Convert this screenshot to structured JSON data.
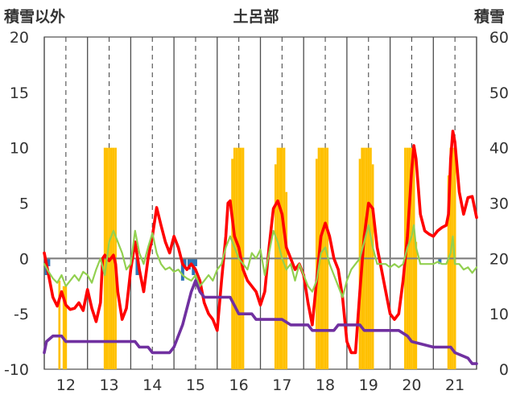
{
  "chart_data": {
    "type": "line",
    "title": "土呂部",
    "ylabel_left": "積雪以外",
    "ylabel_right": "積雪",
    "y_left_range": [
      -10,
      20
    ],
    "y_left_ticks": [
      "20",
      "15",
      "10",
      "5",
      "0",
      "-5",
      "-10"
    ],
    "y_right_range": [
      0,
      60
    ],
    "y_right_ticks": [
      "60",
      "50",
      "40",
      "30",
      "20",
      "10",
      "0"
    ],
    "x_range": [
      11.5,
      21.5
    ],
    "x_ticks": [
      "12",
      "13",
      "14",
      "15",
      "16",
      "17",
      "18",
      "19",
      "20",
      "21"
    ],
    "vertical_gridlines": "solid at day boundaries, dashed at midday",
    "legend": "none",
    "colors": {
      "temperature": "#ff0000",
      "dewpoint": "#92d050",
      "snow_depth": "#7030a0",
      "snowfall": "#ffc000",
      "precipitation": "#2e75b6",
      "zero_line": "#7f7f7f",
      "grid": "#4d4d4d"
    },
    "series": [
      {
        "axis": "left",
        "style": "line",
        "color": "#ff0000",
        "points": [
          [
            11.5,
            0.5
          ],
          [
            11.6,
            -1.5
          ],
          [
            11.7,
            -3.5
          ],
          [
            11.8,
            -4.3
          ],
          [
            11.9,
            -3.0
          ],
          [
            12.0,
            -4.2
          ],
          [
            12.1,
            -4.6
          ],
          [
            12.2,
            -4.5
          ],
          [
            12.3,
            -4.0
          ],
          [
            12.4,
            -4.7
          ],
          [
            12.5,
            -2.8
          ],
          [
            12.6,
            -4.5
          ],
          [
            12.7,
            -5.7
          ],
          [
            12.8,
            -4.0
          ],
          [
            12.85,
            0.0
          ],
          [
            12.9,
            0.3
          ],
          [
            13.0,
            -0.2
          ],
          [
            13.1,
            0.3
          ],
          [
            13.15,
            -0.5
          ],
          [
            13.2,
            -3.0
          ],
          [
            13.3,
            -5.5
          ],
          [
            13.4,
            -4.5
          ],
          [
            13.5,
            -1.0
          ],
          [
            13.6,
            1.5
          ],
          [
            13.7,
            -1.0
          ],
          [
            13.8,
            -3.0
          ],
          [
            13.9,
            0.0
          ],
          [
            14.0,
            2.0
          ],
          [
            14.1,
            4.6
          ],
          [
            14.2,
            3.0
          ],
          [
            14.3,
            1.5
          ],
          [
            14.4,
            0.5
          ],
          [
            14.5,
            2.0
          ],
          [
            14.6,
            1.0
          ],
          [
            14.7,
            -0.5
          ],
          [
            14.8,
            -1.0
          ],
          [
            14.9,
            -0.5
          ],
          [
            15.0,
            -1.0
          ],
          [
            15.1,
            -2.0
          ],
          [
            15.2,
            -4.0
          ],
          [
            15.3,
            -5.0
          ],
          [
            15.4,
            -5.5
          ],
          [
            15.5,
            -6.5
          ],
          [
            15.6,
            -2.0
          ],
          [
            15.7,
            2.0
          ],
          [
            15.75,
            5.0
          ],
          [
            15.8,
            5.2
          ],
          [
            15.9,
            2.0
          ],
          [
            16.0,
            1.0
          ],
          [
            16.1,
            -1.0
          ],
          [
            16.2,
            -2.0
          ],
          [
            16.3,
            -2.5
          ],
          [
            16.4,
            -3.0
          ],
          [
            16.5,
            -4.2
          ],
          [
            16.6,
            -3.0
          ],
          [
            16.7,
            1.0
          ],
          [
            16.8,
            4.5
          ],
          [
            16.9,
            5.2
          ],
          [
            17.0,
            4.0
          ],
          [
            17.1,
            1.0
          ],
          [
            17.2,
            0.0
          ],
          [
            17.3,
            -1.0
          ],
          [
            17.4,
            -0.5
          ],
          [
            17.5,
            -1.5
          ],
          [
            17.6,
            -4.0
          ],
          [
            17.7,
            -6.0
          ],
          [
            17.8,
            -2.0
          ],
          [
            17.9,
            2.0
          ],
          [
            18.0,
            3.2
          ],
          [
            18.1,
            2.0
          ],
          [
            18.2,
            0.0
          ],
          [
            18.3,
            -1.0
          ],
          [
            18.4,
            -3.5
          ],
          [
            18.5,
            -7.5
          ],
          [
            18.6,
            -8.5
          ],
          [
            18.7,
            -8.5
          ],
          [
            18.8,
            -3.0
          ],
          [
            18.9,
            2.0
          ],
          [
            19.0,
            5.0
          ],
          [
            19.1,
            4.5
          ],
          [
            19.2,
            1.0
          ],
          [
            19.3,
            -1.0
          ],
          [
            19.4,
            -3.0
          ],
          [
            19.5,
            -5.0
          ],
          [
            19.6,
            -5.5
          ],
          [
            19.7,
            -5.0
          ],
          [
            19.8,
            -2.0
          ],
          [
            19.9,
            2.0
          ],
          [
            20.0,
            8.0
          ],
          [
            20.05,
            10.2
          ],
          [
            20.1,
            9.0
          ],
          [
            20.2,
            4.0
          ],
          [
            20.3,
            2.5
          ],
          [
            20.4,
            2.2
          ],
          [
            20.5,
            2.0
          ],
          [
            20.6,
            2.5
          ],
          [
            20.7,
            2.8
          ],
          [
            20.8,
            3.0
          ],
          [
            20.85,
            4.0
          ],
          [
            20.9,
            9.0
          ],
          [
            20.95,
            11.5
          ],
          [
            21.0,
            10.5
          ],
          [
            21.1,
            6.0
          ],
          [
            21.2,
            4.0
          ],
          [
            21.3,
            5.5
          ],
          [
            21.4,
            5.6
          ],
          [
            21.5,
            3.7
          ]
        ]
      },
      {
        "axis": "left",
        "style": "line",
        "color": "#92d050",
        "points": [
          [
            11.5,
            -0.5
          ],
          [
            11.6,
            -1.2
          ],
          [
            11.7,
            -1.8
          ],
          [
            11.8,
            -2.2
          ],
          [
            11.9,
            -1.5
          ],
          [
            12.0,
            -2.5
          ],
          [
            12.1,
            -2.0
          ],
          [
            12.2,
            -1.5
          ],
          [
            12.3,
            -2.0
          ],
          [
            12.4,
            -1.2
          ],
          [
            12.5,
            -1.5
          ],
          [
            12.6,
            -2.2
          ],
          [
            12.7,
            -1.0
          ],
          [
            12.8,
            0.0
          ],
          [
            12.9,
            -1.5
          ],
          [
            13.0,
            1.5
          ],
          [
            13.1,
            2.5
          ],
          [
            13.2,
            1.5
          ],
          [
            13.3,
            0.5
          ],
          [
            13.4,
            -1.0
          ],
          [
            13.5,
            -0.5
          ],
          [
            13.6,
            2.5
          ],
          [
            13.7,
            0.5
          ],
          [
            13.8,
            -0.5
          ],
          [
            13.9,
            1.0
          ],
          [
            14.0,
            2.3
          ],
          [
            14.1,
            0.5
          ],
          [
            14.2,
            -0.5
          ],
          [
            14.3,
            -1.0
          ],
          [
            14.4,
            -0.8
          ],
          [
            14.5,
            -1.2
          ],
          [
            14.6,
            -1.0
          ],
          [
            14.7,
            -1.5
          ],
          [
            14.8,
            -1.8
          ],
          [
            14.9,
            -2.0
          ],
          [
            15.0,
            -1.5
          ],
          [
            15.1,
            -2.5
          ],
          [
            15.2,
            -2.0
          ],
          [
            15.3,
            -1.5
          ],
          [
            15.4,
            -2.0
          ],
          [
            15.5,
            -1.0
          ],
          [
            15.6,
            -0.5
          ],
          [
            15.7,
            1.0
          ],
          [
            15.8,
            2.0
          ],
          [
            15.9,
            1.0
          ],
          [
            16.0,
            0.0
          ],
          [
            16.1,
            -0.5
          ],
          [
            16.2,
            -1.0
          ],
          [
            16.3,
            0.5
          ],
          [
            16.4,
            0.0
          ],
          [
            16.5,
            0.8
          ],
          [
            16.6,
            -1.5
          ],
          [
            16.7,
            0.5
          ],
          [
            16.8,
            2.5
          ],
          [
            16.9,
            1.5
          ],
          [
            17.0,
            0.0
          ],
          [
            17.1,
            -1.0
          ],
          [
            17.2,
            -0.5
          ],
          [
            17.3,
            -2.0
          ],
          [
            17.4,
            -0.5
          ],
          [
            17.5,
            -1.5
          ],
          [
            17.6,
            -2.5
          ],
          [
            17.7,
            -3.0
          ],
          [
            17.8,
            -2.0
          ],
          [
            17.9,
            0.5
          ],
          [
            18.0,
            1.0
          ],
          [
            18.1,
            -0.5
          ],
          [
            18.2,
            -1.5
          ],
          [
            18.3,
            -2.5
          ],
          [
            18.4,
            -3.5
          ],
          [
            18.5,
            -2.0
          ],
          [
            18.6,
            -1.0
          ],
          [
            18.7,
            -0.5
          ],
          [
            18.8,
            0.0
          ],
          [
            18.9,
            1.5
          ],
          [
            19.0,
            3.0
          ],
          [
            19.1,
            1.0
          ],
          [
            19.2,
            -0.5
          ],
          [
            19.3,
            -0.5
          ],
          [
            19.4,
            -0.5
          ],
          [
            19.5,
            -0.8
          ],
          [
            19.6,
            -0.5
          ],
          [
            19.7,
            -0.8
          ],
          [
            19.8,
            -0.5
          ],
          [
            19.9,
            1.0
          ],
          [
            20.0,
            2.0
          ],
          [
            20.05,
            3.0
          ],
          [
            20.1,
            1.0
          ],
          [
            20.2,
            -0.5
          ],
          [
            20.3,
            -0.5
          ],
          [
            20.4,
            -0.5
          ],
          [
            20.5,
            -0.5
          ],
          [
            20.6,
            -0.3
          ],
          [
            20.7,
            -0.5
          ],
          [
            20.8,
            -0.5
          ],
          [
            20.9,
            0.5
          ],
          [
            20.95,
            2.0
          ],
          [
            21.0,
            -0.5
          ],
          [
            21.1,
            -0.5
          ],
          [
            21.2,
            -1.0
          ],
          [
            21.3,
            -0.8
          ],
          [
            21.4,
            -1.3
          ],
          [
            21.5,
            -0.8
          ]
        ]
      },
      {
        "axis": "right",
        "style": "step",
        "color": "#7030a0",
        "points": [
          [
            11.5,
            3
          ],
          [
            11.55,
            5
          ],
          [
            11.7,
            6
          ],
          [
            11.9,
            6
          ],
          [
            12.0,
            5
          ],
          [
            12.5,
            5
          ],
          [
            13.6,
            5
          ],
          [
            13.7,
            4
          ],
          [
            13.9,
            4
          ],
          [
            14.0,
            3
          ],
          [
            14.4,
            3
          ],
          [
            14.5,
            4
          ],
          [
            14.7,
            8
          ],
          [
            14.9,
            14
          ],
          [
            15.0,
            16
          ],
          [
            15.1,
            14
          ],
          [
            15.2,
            13
          ],
          [
            15.8,
            13
          ],
          [
            16.0,
            10
          ],
          [
            16.3,
            10
          ],
          [
            16.4,
            9
          ],
          [
            17.0,
            9
          ],
          [
            17.2,
            8
          ],
          [
            17.6,
            8
          ],
          [
            17.7,
            7
          ],
          [
            18.2,
            7
          ],
          [
            18.3,
            8
          ],
          [
            18.8,
            8
          ],
          [
            18.9,
            7
          ],
          [
            19.7,
            7
          ],
          [
            19.9,
            6
          ],
          [
            20.0,
            5
          ],
          [
            20.5,
            4
          ],
          [
            20.9,
            4
          ],
          [
            21.0,
            3
          ],
          [
            21.3,
            2
          ],
          [
            21.4,
            1
          ],
          [
            21.5,
            1
          ]
        ]
      },
      {
        "axis": "right",
        "style": "bars",
        "color": "#ffc000",
        "points": [
          [
            11.85,
            16
          ],
          [
            11.95,
            15
          ],
          [
            12.0,
            15
          ],
          [
            12.9,
            40
          ],
          [
            12.95,
            40
          ],
          [
            13.0,
            40
          ],
          [
            13.05,
            40
          ],
          [
            13.1,
            40
          ],
          [
            13.15,
            40
          ],
          [
            15.85,
            38
          ],
          [
            15.9,
            40
          ],
          [
            15.95,
            40
          ],
          [
            16.0,
            40
          ],
          [
            16.05,
            40
          ],
          [
            16.1,
            40
          ],
          [
            16.85,
            37
          ],
          [
            16.9,
            40
          ],
          [
            16.95,
            40
          ],
          [
            17.0,
            40
          ],
          [
            17.05,
            40
          ],
          [
            17.1,
            32
          ],
          [
            17.8,
            38
          ],
          [
            17.85,
            40
          ],
          [
            17.9,
            40
          ],
          [
            17.95,
            40
          ],
          [
            18.0,
            40
          ],
          [
            18.05,
            40
          ],
          [
            18.8,
            38
          ],
          [
            18.85,
            40
          ],
          [
            18.9,
            40
          ],
          [
            18.95,
            40
          ],
          [
            19.0,
            40
          ],
          [
            19.05,
            40
          ],
          [
            19.1,
            37
          ],
          [
            19.85,
            40
          ],
          [
            19.9,
            40
          ],
          [
            19.95,
            40
          ],
          [
            20.0,
            40
          ],
          [
            20.05,
            40
          ],
          [
            20.1,
            23
          ],
          [
            20.85,
            35
          ],
          [
            20.9,
            40
          ],
          [
            20.95,
            40
          ],
          [
            21.0,
            40
          ]
        ]
      },
      {
        "axis": "left",
        "style": "bars",
        "color": "#2e75b6",
        "points": [
          [
            11.55,
            -1.5
          ],
          [
            11.6,
            -0.7
          ],
          [
            13.65,
            -1.5
          ],
          [
            14.7,
            -2.0
          ],
          [
            14.75,
            -0.8
          ],
          [
            14.85,
            -1.0
          ],
          [
            14.9,
            -0.7
          ],
          [
            14.95,
            -1.5
          ],
          [
            15.0,
            -0.7
          ],
          [
            20.65,
            -0.5
          ]
        ]
      }
    ]
  }
}
